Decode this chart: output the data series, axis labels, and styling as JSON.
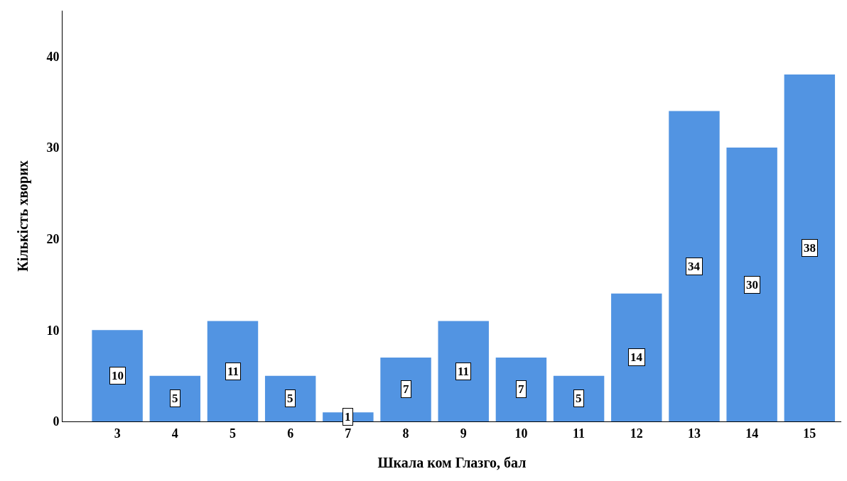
{
  "chart_data": {
    "type": "bar",
    "xlabel": "Шкала ком Глазго, бал",
    "ylabel": "Кількість хворих",
    "categories": [
      "3",
      "4",
      "5",
      "6",
      "7",
      "8",
      "9",
      "10",
      "11",
      "12",
      "13",
      "14",
      "15"
    ],
    "values": [
      10,
      5,
      11,
      5,
      1,
      7,
      11,
      7,
      5,
      14,
      34,
      30,
      38
    ],
    "color": "#5294e2",
    "ylim": [
      0,
      45
    ],
    "yticks": [
      0,
      10,
      20,
      30,
      40
    ],
    "data_labels": true
  }
}
